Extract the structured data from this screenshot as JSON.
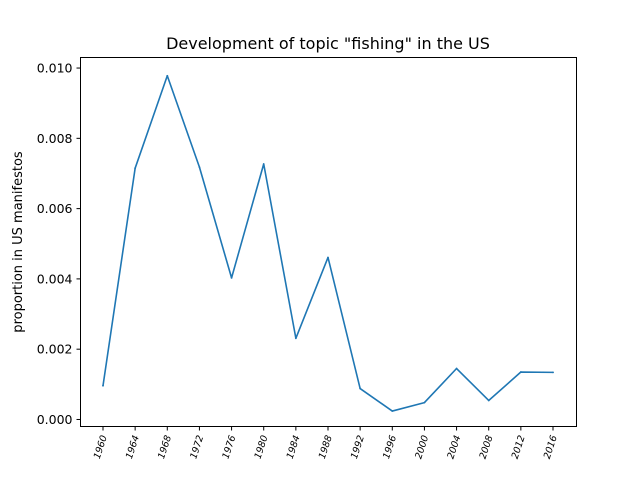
{
  "chart_data": {
    "type": "line",
    "title": "Development of topic \"fishing\" in the US",
    "xlabel": "",
    "ylabel": "proportion in US manifestos",
    "categories": [
      "1960",
      "1964",
      "1968",
      "1972",
      "1976",
      "1980",
      "1984",
      "1988",
      "1992",
      "1996",
      "2000",
      "2004",
      "2008",
      "2012",
      "2016"
    ],
    "series": [
      {
        "values": [
          0.00096,
          0.00715,
          0.00978,
          0.00718,
          0.00403,
          0.00727,
          0.00231,
          0.00461,
          0.00088,
          0.00024,
          0.00048,
          0.00145,
          0.00054,
          0.00135,
          0.00134
        ],
        "color": "#1f77b4"
      }
    ],
    "yticks": [
      "0.000",
      "0.002",
      "0.004",
      "0.006",
      "0.008",
      "0.010"
    ],
    "ylim": [
      -0.0002,
      0.0103
    ],
    "grid": false,
    "legend": "none"
  }
}
